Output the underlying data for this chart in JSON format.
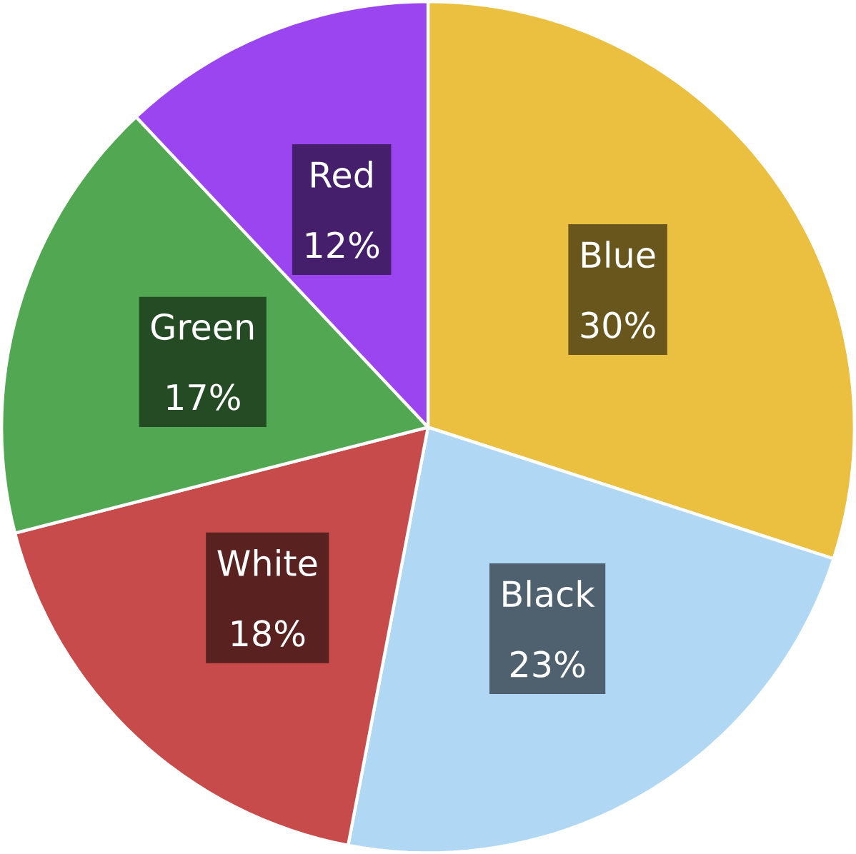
{
  "chart_data": {
    "type": "pie",
    "categories": [
      "Blue",
      "Black",
      "White",
      "Green",
      "Red"
    ],
    "values": [
      30,
      23,
      18,
      17,
      12
    ],
    "value_labels": [
      "30%",
      "23%",
      "18%",
      "17%",
      "12%"
    ],
    "colors": [
      "#ebc040",
      "#b0d8f5",
      "#c84b4b",
      "#52a852",
      "#9b45f0"
    ]
  }
}
